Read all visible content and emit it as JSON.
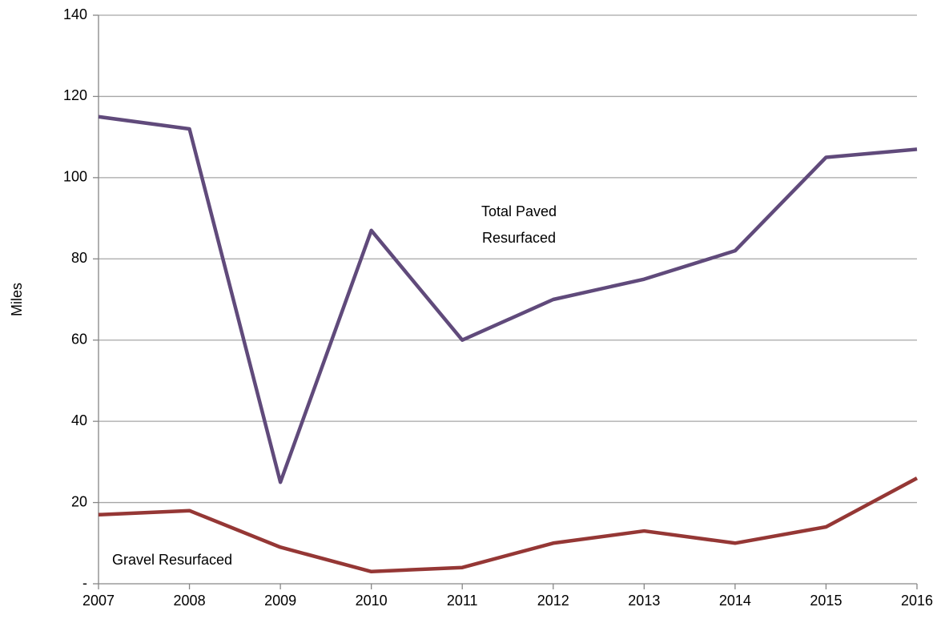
{
  "chart_data": {
    "type": "line",
    "y_label": "Miles",
    "x": [
      2007,
      2008,
      2009,
      2010,
      2011,
      2012,
      2013,
      2014,
      2015,
      2016
    ],
    "xlim": [
      2007,
      2016
    ],
    "xticks": [
      2007,
      2008,
      2009,
      2010,
      2011,
      2012,
      2013,
      2014,
      2015,
      2016
    ],
    "ylim": [
      0,
      140
    ],
    "yticks": [
      {
        "value": 0,
        "label": "-"
      },
      20,
      40,
      60,
      80,
      100,
      120,
      140
    ],
    "grid": true,
    "series": [
      {
        "name": "Total Paved Resurfaced",
        "color": "#604a7b",
        "values": [
          115,
          112,
          25,
          87,
          60,
          70,
          75,
          82,
          105,
          107
        ]
      },
      {
        "name": "Gravel Resurfaced",
        "color": "#953735",
        "values": [
          17,
          18,
          9,
          3,
          4,
          10,
          13,
          10,
          14,
          26
        ]
      }
    ]
  }
}
